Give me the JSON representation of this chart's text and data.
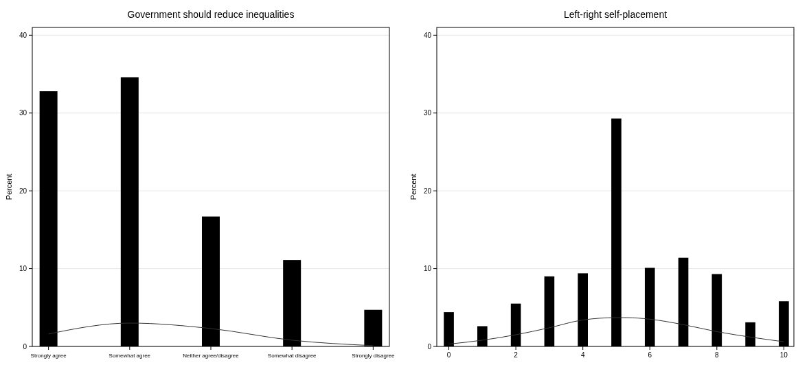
{
  "chart_data": [
    {
      "type": "bar",
      "title": "Government should reduce inequalities",
      "ylabel": "Percent",
      "categories": [
        "Strongly agree",
        "Somewhat agree",
        "Neither agree/disagree",
        "Somewhat disagree",
        "Strongly disagree"
      ],
      "ylim": [
        0,
        41
      ],
      "yticks": [
        0,
        10,
        20,
        30,
        40
      ],
      "grid": "y",
      "series": [
        {
          "color": "#000000",
          "values": [
            32.8,
            34.6,
            16.7,
            11.1,
            4.7
          ]
        },
        {
          "type": "line",
          "color": "#333333",
          "values": [
            1.6,
            3.0,
            2.3,
            0.8,
            0.1
          ]
        }
      ]
    },
    {
      "type": "bar",
      "title": "Left-right self-placement",
      "ylabel": "Percent",
      "x": [
        0,
        1,
        2,
        3,
        4,
        5,
        6,
        7,
        8,
        9,
        10
      ],
      "xlim": [
        -0.36,
        10.3
      ],
      "xticks": [
        0,
        2,
        4,
        6,
        8,
        10
      ],
      "ylim": [
        0,
        41
      ],
      "yticks": [
        0,
        10,
        20,
        30,
        40
      ],
      "grid": "y",
      "series": [
        {
          "color": "#000000",
          "values": [
            4.4,
            2.6,
            5.5,
            9.0,
            9.4,
            29.3,
            10.1,
            11.4,
            9.3,
            3.1,
            5.8
          ]
        },
        {
          "type": "line",
          "color": "#333333",
          "x": [
            0,
            1,
            2,
            3,
            4,
            5,
            5.3,
            6,
            7,
            8,
            9,
            10
          ],
          "values": [
            0.3,
            0.8,
            1.5,
            2.4,
            3.4,
            3.7,
            3.7,
            3.5,
            2.8,
            1.9,
            1.2,
            0.6
          ]
        }
      ]
    }
  ]
}
